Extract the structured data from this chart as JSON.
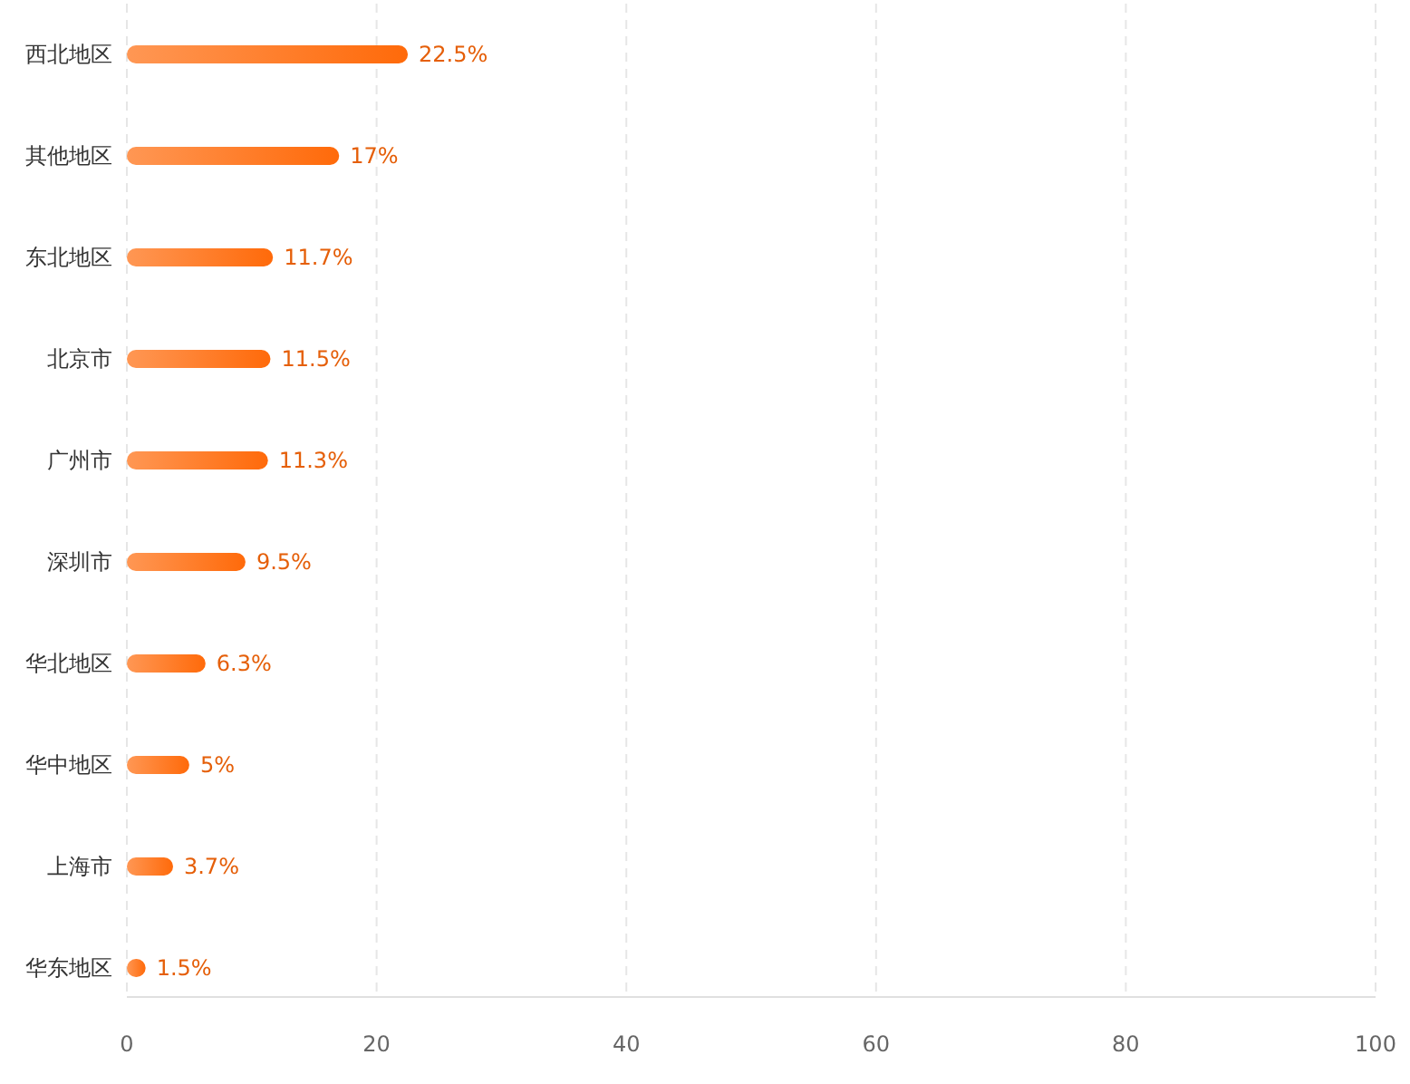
{
  "chart_data": {
    "type": "bar",
    "orientation": "horizontal",
    "categories": [
      "西北地区",
      "其他地区",
      "东北地区",
      "北京市",
      "广州市",
      "深圳市",
      "华北地区",
      "华中地区",
      "上海市",
      "华东地区"
    ],
    "values": [
      22.5,
      17,
      11.7,
      11.5,
      11.3,
      9.5,
      6.3,
      5,
      3.7,
      1.5
    ],
    "value_labels": [
      "22.5%",
      "17%",
      "11.7%",
      "11.5%",
      "11.3%",
      "9.5%",
      "6.3%",
      "5%",
      "3.7%",
      "1.5%"
    ],
    "color": "#ff6a0a",
    "xlim": [
      0,
      100
    ],
    "xticks": [
      0,
      20,
      40,
      60,
      80,
      100
    ],
    "grid": "x"
  }
}
